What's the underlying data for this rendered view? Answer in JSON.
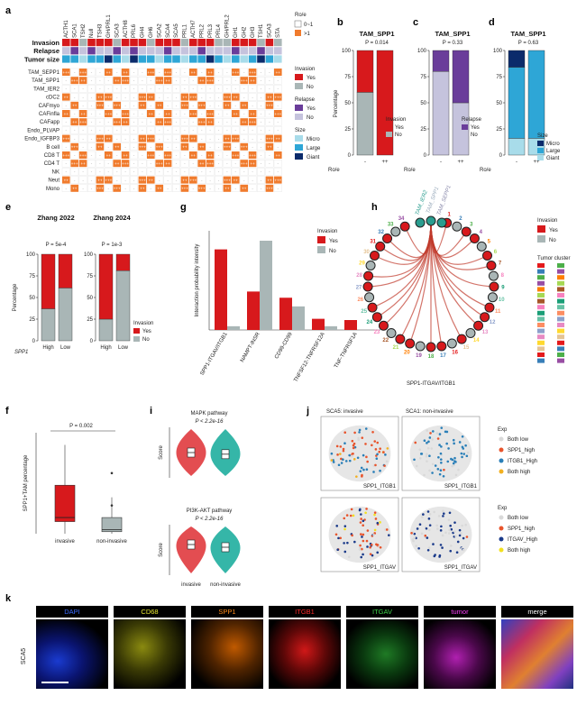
{
  "panels": {
    "a": {
      "label": "a",
      "columns": [
        "ACTH1",
        "SCA1",
        "TSH2",
        "Null",
        "TSH3",
        "GH/PRL1",
        "SCA3",
        "ACTH8",
        "PRL6",
        "GH4",
        "GH6",
        "SCA2",
        "SCA4",
        "SCA5",
        "PRL1",
        "ACTH7",
        "PRL2",
        "PRL3",
        "PRL4",
        "GH/PRL2",
        "GH1",
        "GH2",
        "GH3",
        "TSH1",
        "SCA3",
        "STA"
      ],
      "annot_rows": [
        "Invasion",
        "Relapse",
        "Tumor size"
      ],
      "rows": [
        "TAM_SEPP1",
        "TAM_SPP1",
        "TAM_IER2",
        "cDC2",
        "CAFmyo",
        "CAFinfla",
        "CAFapp",
        "Endo_PLVAP",
        "Endo_IGFBP3",
        "B cell",
        "CD8 T",
        "CD4 T",
        "NK",
        "Neut",
        "Mono"
      ],
      "roe_title": "Ro/e",
      "roe_legend": [
        "0~1",
        ">1"
      ],
      "cell_marks": [
        "+++",
        "++",
        "+",
        "±",
        "-"
      ],
      "invasion_title": "Invasion",
      "invasion_legend": [
        "Yes",
        "No"
      ],
      "relapse_title": "Relapse",
      "relapse_legend": [
        "Yes",
        "No"
      ],
      "size_title": "Size",
      "size_legend": [
        "Micro",
        "Large",
        "Giant"
      ],
      "colors": {
        "inv_yes": "#d7191c",
        "inv_no": "#a9b6b6",
        "rel_yes": "#6a3d9a",
        "rel_no": "#c5c3dd",
        "micro": "#a8dcea",
        "large": "#2ea6d6",
        "giant": "#0b2b6b",
        "roe_hi": "#f07b2d"
      }
    },
    "b": {
      "label": "b",
      "title": "TAM_SPP1",
      "pvalue": "P = 0.014",
      "ylabel": "Percentage",
      "xlabel": "Ro/e",
      "xticks": [
        "-",
        "++"
      ],
      "legend_title": "Invasion",
      "legend": [
        "Yes",
        "No"
      ]
    },
    "c": {
      "label": "c",
      "title": "TAM_SPP1",
      "pvalue": "P = 0.33",
      "xlabel": "Ro/e",
      "xticks": [
        "-",
        "++"
      ],
      "legend_title": "Relapse",
      "legend": [
        "Yes",
        "No"
      ]
    },
    "d": {
      "label": "d",
      "title": "TAM_SPP1",
      "pvalue": "P = 0.63",
      "xlabel": "Ro/e",
      "xticks": [
        "-",
        "++"
      ],
      "legend_title": "Size",
      "legend": [
        "Micro",
        "Large",
        "Giant"
      ]
    },
    "e": {
      "label": "e",
      "title1": "Zhang 2022",
      "title2": "Zhang 2024",
      "p1": "P = 5e-4",
      "p2": "P = 1e-3",
      "ylabel": "Percentage",
      "gene": "SPP1",
      "xticks": [
        "High",
        "Low"
      ],
      "legend_title": "Invasion",
      "legend": [
        "Yes",
        "No"
      ]
    },
    "f": {
      "label": "f",
      "pvalue": "P = 0.002",
      "ylabel": "SPP1+TAM percentage",
      "xticks": [
        "invasive",
        "non-invasive"
      ]
    },
    "g": {
      "label": "g",
      "ylabel": "Interaction probability intensity",
      "legend_title": "Invasion",
      "legend": [
        "Yes",
        "No"
      ]
    },
    "h": {
      "label": "h",
      "nodes_top": [
        "TAM_IER2",
        "TAM_SPP1",
        "TAM_SEPP1"
      ],
      "caption": "SPP1-ITGAV/ITGB1",
      "legend_title": "Invasion",
      "legend": [
        "Yes",
        "No"
      ],
      "cluster_title": "Tumor cluster"
    },
    "i": {
      "label": "i",
      "title1": "MAPK pathway",
      "p1": "P < 2.2e-16",
      "title2": "PI3K-AKT pathway",
      "p2": "P < 2.2e-16",
      "ylabel": "Score",
      "xticks": [
        "invasive",
        "non-invasive"
      ]
    },
    "j": {
      "label": "j",
      "title1": "SCA5: invasive",
      "title2": "SCA1: non-invasive",
      "sub_top": "SPP1_ITGB1",
      "sub_bottom": "SPP1_ITGAV",
      "legend1_title": "Exp",
      "legend1": [
        "Both low",
        "SPP1_high",
        "ITGB1_High",
        "Both high"
      ],
      "legend2_title": "Exp",
      "legend2": [
        "Both low",
        "SPP1_high",
        "ITGAV_High",
        "Both high"
      ]
    },
    "k": {
      "label": "k",
      "sample": "SCA5",
      "channels": [
        {
          "name": "DAPI",
          "color": "#3b6cff"
        },
        {
          "name": "CD68",
          "color": "#e8e830"
        },
        {
          "name": "SPP1",
          "color": "#ff8c1a"
        },
        {
          "name": "ITGB1",
          "color": "#ff2a2a"
        },
        {
          "name": "ITGAV",
          "color": "#3fd14a"
        },
        {
          "name": "tumor",
          "color": "#ff40ff"
        },
        {
          "name": "merge",
          "color": "#ffffff"
        }
      ]
    }
  },
  "chart_data": [
    {
      "type": "bar",
      "id": "b",
      "categories": [
        "-",
        "++"
      ],
      "series": [
        {
          "name": "Yes",
          "values": [
            40,
            100
          ]
        },
        {
          "name": "No",
          "values": [
            60,
            0
          ]
        }
      ],
      "ylim": [
        0,
        100
      ],
      "ylabel": "Percentage",
      "xlabel": "Ro/e",
      "title": "TAM_SPP1"
    },
    {
      "type": "bar",
      "id": "c",
      "categories": [
        "-",
        "++"
      ],
      "series": [
        {
          "name": "Yes",
          "values": [
            20,
            50
          ]
        },
        {
          "name": "No",
          "values": [
            80,
            50
          ]
        }
      ],
      "ylim": [
        0,
        100
      ],
      "ylabel": "Percentage",
      "xlabel": "Ro/e",
      "title": "TAM_SPP1"
    },
    {
      "type": "bar",
      "id": "d",
      "categories": [
        "-",
        "++"
      ],
      "series": [
        {
          "name": "Micro",
          "values": [
            16,
            0
          ]
        },
        {
          "name": "Large",
          "values": [
            68,
            84
          ]
        },
        {
          "name": "Giant",
          "values": [
            16,
            16
          ]
        }
      ],
      "ylim": [
        0,
        100
      ],
      "ylabel": "Percentage",
      "xlabel": "Ro/e",
      "title": "TAM_SPP1"
    },
    {
      "type": "bar",
      "id": "e1",
      "categories": [
        "High",
        "Low"
      ],
      "series": [
        {
          "name": "Yes",
          "values": [
            63,
            39
          ]
        },
        {
          "name": "No",
          "values": [
            37,
            61
          ]
        }
      ],
      "ylim": [
        0,
        100
      ],
      "title": "Zhang 2022"
    },
    {
      "type": "bar",
      "id": "e2",
      "categories": [
        "High",
        "Low"
      ],
      "series": [
        {
          "name": "Yes",
          "values": [
            75,
            19
          ]
        },
        {
          "name": "No",
          "values": [
            25,
            81
          ]
        }
      ],
      "ylim": [
        0,
        100
      ],
      "title": "Zhang 2024"
    },
    {
      "type": "bar",
      "id": "g",
      "categories": [
        "SPP1-ITGAV/ITGB1",
        "NAMPT-INSR",
        "CD99-CD99",
        "TNFSF12-TNFRSF12A",
        "TNF-TNFRSF1A"
      ],
      "series": [
        {
          "name": "Yes",
          "values": [
            0.65,
            0.31,
            0.26,
            0.09,
            0.08
          ]
        },
        {
          "name": "No",
          "values": [
            0.03,
            0.72,
            0.19,
            0.03,
            0.0
          ]
        }
      ],
      "ylabel": "Interaction probability intensity"
    },
    {
      "type": "box",
      "id": "f",
      "categories": [
        "invasive",
        "non-invasive"
      ],
      "series": [
        {
          "name": "invasive",
          "min": 0,
          "q1": 3,
          "median": 4,
          "q3": 12,
          "max": 22
        },
        {
          "name": "non-invasive",
          "min": 0,
          "q1": 0.5,
          "median": 1,
          "q3": 4,
          "max": 9,
          "outliers": [
            15,
            7
          ]
        }
      ],
      "ylabel": "SPP1+TAM percentage",
      "ylim": [
        0,
        25
      ]
    },
    {
      "type": "violin",
      "id": "i1",
      "categories": [
        "invasive",
        "non-invasive"
      ],
      "series": [
        {
          "name": "invasive",
          "median": 0.0
        },
        {
          "name": "non-invasive",
          "median": -0.03
        }
      ],
      "ylabel": "Score",
      "title": "MAPK pathway"
    },
    {
      "type": "violin",
      "id": "i2",
      "categories": [
        "invasive",
        "non-invasive"
      ],
      "series": [
        {
          "name": "invasive",
          "median": 0.1
        },
        {
          "name": "non-invasive",
          "median": 0.05
        }
      ],
      "ylabel": "Score",
      "title": "PI3K-AKT pathway"
    }
  ]
}
